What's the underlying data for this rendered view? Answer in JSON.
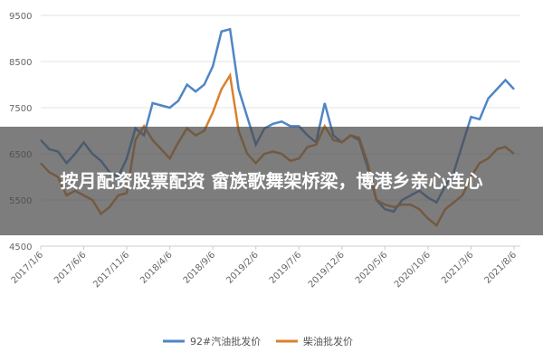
{
  "chart_data": {
    "type": "line",
    "categories": [
      "2017/1/6",
      null,
      null,
      null,
      null,
      "2017/6/6",
      null,
      null,
      null,
      null,
      "2017/11/6",
      null,
      null,
      null,
      null,
      "2018/4/6",
      null,
      null,
      null,
      null,
      "2018/9/6",
      null,
      null,
      null,
      null,
      "2019/2/6",
      null,
      null,
      null,
      null,
      "2019/7/6",
      null,
      null,
      null,
      null,
      "2019/12/6",
      null,
      null,
      null,
      null,
      "2020/5/6",
      null,
      null,
      null,
      null,
      "2020/10/6",
      null,
      null,
      null,
      null,
      "2021/3/6",
      null,
      null,
      null,
      null,
      "2021/8/6"
    ],
    "series": [
      {
        "name": "92#汽油批发价",
        "color": "#4f86c6",
        "values": [
          6800,
          6600,
          6550,
          6300,
          6500,
          6750,
          6500,
          6350,
          6100,
          6000,
          6400,
          7050,
          6900,
          7600,
          7550,
          7500,
          7650,
          8000,
          7850,
          8000,
          8400,
          9150,
          9200,
          7900,
          7300,
          6700,
          7050,
          7150,
          7200,
          7100,
          7100,
          6900,
          6750,
          7600,
          6900,
          6750,
          6900,
          6800,
          6200,
          5500,
          5300,
          5250,
          5500,
          5600,
          5700,
          5550,
          5450,
          5800,
          6100,
          6700,
          7300,
          7250,
          7700,
          7900,
          8100,
          7900
        ]
      },
      {
        "name": "柴油批发价",
        "color": "#d9822b",
        "values": [
          6300,
          6100,
          6000,
          5600,
          5700,
          5600,
          5500,
          5200,
          5350,
          5600,
          5650,
          6800,
          7100,
          6800,
          6600,
          6400,
          6750,
          7050,
          6900,
          7000,
          7400,
          7900,
          8200,
          7000,
          6500,
          6300,
          6500,
          6550,
          6500,
          6350,
          6400,
          6650,
          6700,
          7100,
          6800,
          6750,
          6900,
          6850,
          6300,
          5500,
          5400,
          5350,
          5400,
          5400,
          5300,
          5100,
          4950,
          5300,
          5450,
          5600,
          6000,
          6300,
          6400,
          6600,
          6650,
          6500
        ]
      }
    ],
    "ylim": [
      4500,
      9500
    ],
    "yticks": [
      4500,
      5500,
      6500,
      7500,
      8500,
      9500
    ],
    "grid": true,
    "legend": "bottom",
    "annotation": "按月配资股票配资 畲族歌舞架桥梁，博港乡亲心连心"
  }
}
